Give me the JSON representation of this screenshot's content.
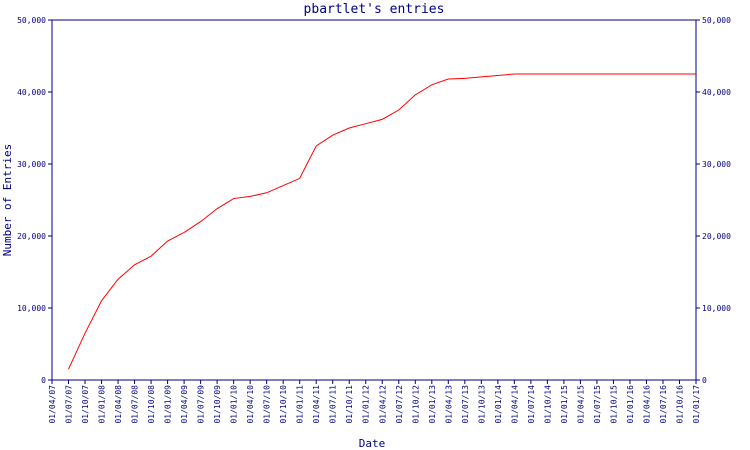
{
  "chart_data": {
    "type": "line",
    "title": "pbartlet's entries",
    "x_label": "Date",
    "y_label": "Number of Entries",
    "categories": [
      "01/04/07",
      "01/07/07",
      "01/10/07",
      "01/01/08",
      "01/04/08",
      "01/07/08",
      "01/10/08",
      "01/01/09",
      "01/04/09",
      "01/07/09",
      "01/10/09",
      "01/01/10",
      "01/04/10",
      "01/07/10",
      "01/10/10",
      "01/01/11",
      "01/04/11",
      "01/07/11",
      "01/10/11",
      "01/01/12",
      "01/04/12",
      "01/07/12",
      "01/10/12",
      "01/01/13",
      "01/04/13",
      "01/07/13",
      "01/10/13",
      "01/01/14",
      "01/04/14",
      "01/07/14",
      "01/10/14",
      "01/01/15",
      "01/04/15",
      "01/07/15",
      "01/10/15",
      "01/01/16",
      "01/04/16",
      "01/07/16",
      "01/10/16",
      "01/01/17"
    ],
    "series": [
      {
        "name": "entries",
        "color": "#ff0000",
        "values": [
          null,
          1500,
          6500,
          11000,
          14000,
          16000,
          17200,
          19300,
          20500,
          22000,
          23800,
          25200,
          25500,
          26000,
          27000,
          28000,
          32500,
          34000,
          35000,
          35600,
          36200,
          37500,
          39600,
          41000,
          41800,
          41900,
          42100,
          42300,
          42500,
          42500,
          42500,
          42500,
          42500,
          42500,
          42500,
          42500,
          42500,
          42500,
          42500,
          42500
        ]
      }
    ],
    "ylim": [
      0,
      50000
    ],
    "yticks": [
      0,
      {
        "value": 10000,
        "label": "10,000"
      },
      {
        "value": 20000,
        "label": "20,000"
      },
      {
        "value": 30000,
        "label": "30,000"
      },
      {
        "value": 40000,
        "label": "40,000"
      },
      {
        "value": 50000,
        "label": "50,000"
      }
    ],
    "y2lim": [
      0,
      50000
    ],
    "y2ticks": [
      0,
      {
        "value": 10000,
        "label": "10,000"
      },
      {
        "value": 20000,
        "label": "20,000"
      },
      {
        "value": 30000,
        "label": "30,000"
      },
      {
        "value": 40000,
        "label": "40,000"
      },
      {
        "value": 50000,
        "label": "50,000"
      }
    ],
    "axis_color": "#000080"
  }
}
